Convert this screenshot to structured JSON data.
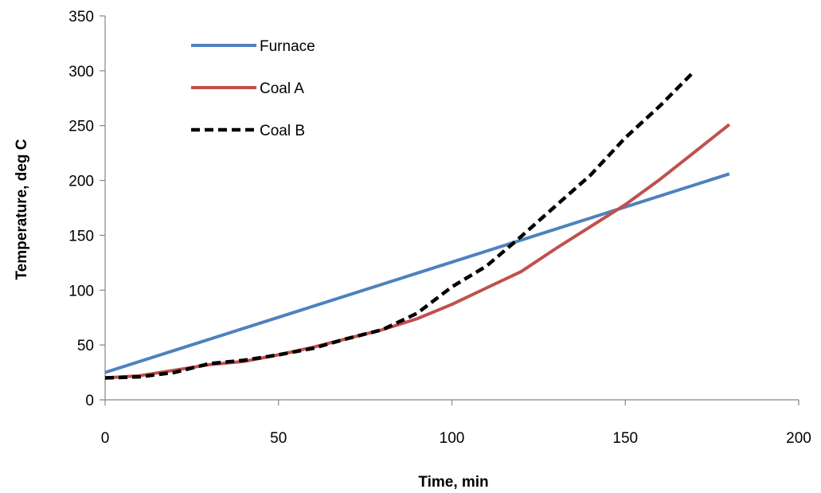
{
  "chart_data": {
    "type": "line",
    "title": "",
    "xlabel": "Time, min",
    "ylabel": "Temperature, deg C",
    "xlim": [
      0,
      200
    ],
    "ylim": [
      0,
      350
    ],
    "xticks": [
      0,
      50,
      100,
      150,
      200
    ],
    "yticks": [
      0,
      50,
      100,
      150,
      200,
      250,
      300,
      350
    ],
    "grid": false,
    "legend": "top-left",
    "series": [
      {
        "name": "Furnace",
        "color": "#4F81BD",
        "style": "solid",
        "x": [
          0,
          180
        ],
        "y": [
          25,
          206
        ]
      },
      {
        "name": "Coal A",
        "color": "#C0504D",
        "style": "solid",
        "x": [
          0,
          10,
          20,
          30,
          40,
          50,
          60,
          70,
          80,
          90,
          100,
          110,
          120,
          130,
          140,
          150,
          160,
          170,
          180
        ],
        "y": [
          20,
          22,
          27,
          32,
          35,
          41,
          48,
          56,
          64,
          74,
          87,
          102,
          117,
          138,
          158,
          178,
          201,
          226,
          251
        ]
      },
      {
        "name": "Coal B",
        "color": "#000000",
        "style": "dashed",
        "x": [
          0,
          10,
          20,
          30,
          40,
          50,
          60,
          70,
          80,
          90,
          100,
          110,
          120,
          130,
          140,
          150,
          160,
          170
        ],
        "y": [
          20,
          21,
          25,
          33,
          36,
          41,
          47,
          56,
          64,
          79,
          103,
          122,
          149,
          177,
          205,
          239,
          268,
          300
        ]
      }
    ]
  }
}
